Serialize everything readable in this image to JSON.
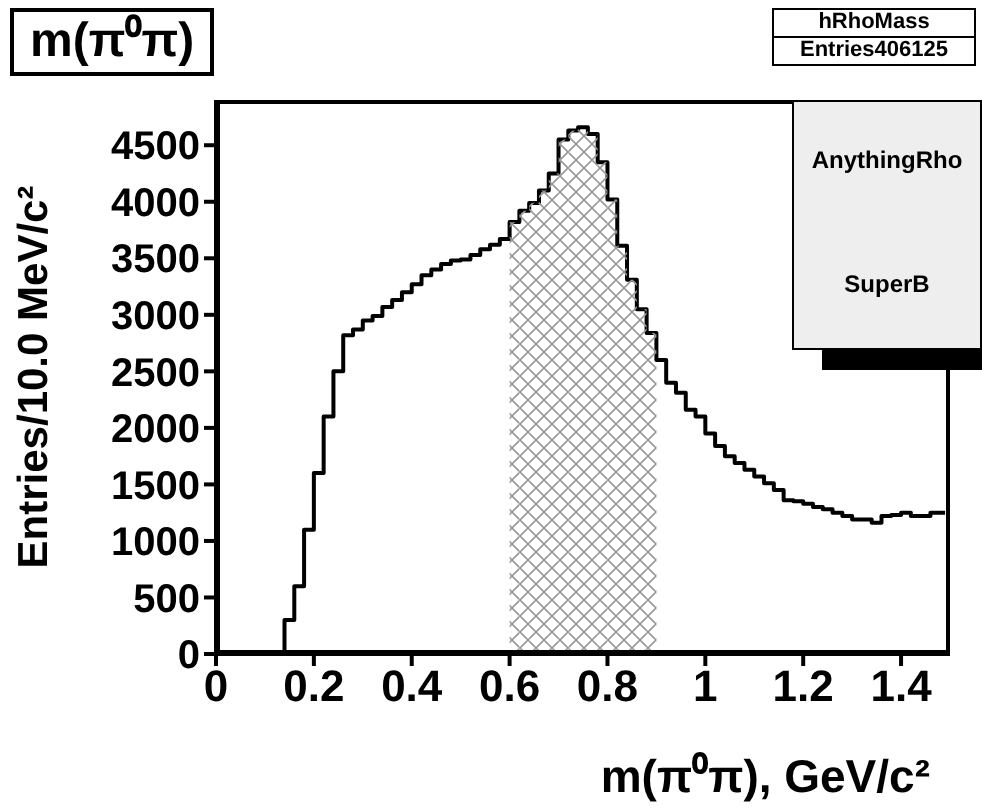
{
  "chart_data": {
    "type": "histogram",
    "title": "m(π⁰π)",
    "xlabel": "m(π⁰π), GeV/c²",
    "ylabel": "Entries/10.0 MeV/c²",
    "annotations": [
      "hRhoMass",
      "Entries406125",
      "AnythingRho",
      "SuperB"
    ],
    "xlim": [
      0,
      1.5
    ],
    "xticks": [
      0,
      0.2,
      0.4,
      0.6,
      0.8,
      1,
      1.2,
      1.4
    ],
    "ylim": [
      0,
      4900
    ],
    "yticks": [
      0,
      500,
      1000,
      1500,
      2000,
      2500,
      3000,
      3500,
      4000,
      4500
    ],
    "bins": [
      0.6,
      0.62,
      0.64,
      0.66,
      0.68,
      0.7,
      0.72,
      0.74,
      0.76,
      0.78,
      0.8,
      0.82,
      0.84,
      0.86,
      0.88,
      0.9
    ],
    "series": [
      {
        "type": "step",
        "color": "#000000",
        "x": [
          0.01,
          0.03,
          0.05,
          0.07,
          0.09,
          0.11,
          0.13,
          0.15,
          0.17,
          0.19,
          0.21,
          0.23,
          0.25,
          0.27,
          0.29,
          0.31,
          0.33,
          0.35,
          0.37,
          0.39,
          0.41,
          0.43,
          0.45,
          0.47,
          0.49,
          0.51,
          0.53,
          0.55,
          0.57,
          0.59,
          0.61,
          0.63,
          0.65,
          0.67,
          0.69,
          0.71,
          0.73,
          0.75,
          0.77,
          0.79,
          0.81,
          0.83,
          0.85,
          0.87,
          0.89,
          0.91,
          0.93,
          0.95,
          0.97,
          0.99,
          1.01,
          1.03,
          1.05,
          1.07,
          1.09,
          1.11,
          1.13,
          1.15,
          1.17,
          1.19,
          1.21,
          1.23,
          1.25,
          1.27,
          1.29,
          1.31,
          1.33,
          1.35,
          1.37,
          1.39,
          1.41,
          1.43,
          1.45,
          1.47,
          1.49
        ],
        "values": [
          0,
          0,
          0,
          0,
          0,
          0,
          0,
          300,
          600,
          1100,
          1600,
          2100,
          2500,
          2820,
          2870,
          2950,
          2990,
          3070,
          3130,
          3200,
          3270,
          3350,
          3400,
          3450,
          3480,
          3490,
          3530,
          3580,
          3620,
          3670,
          3820,
          3920,
          3990,
          4100,
          4250,
          4550,
          4630,
          4660,
          4600,
          4350,
          4020,
          3610,
          3310,
          3050,
          2840,
          2600,
          2400,
          2310,
          2160,
          2100,
          1950,
          1840,
          1750,
          1690,
          1630,
          1570,
          1510,
          1450,
          1360,
          1350,
          1330,
          1300,
          1280,
          1250,
          1220,
          1190,
          1190,
          1160,
          1220,
          1230,
          1250,
          1220,
          1220,
          1250,
          1250
        ]
      },
      {
        "color": "#999999",
        "values": [
          3820,
          3920,
          3990,
          4100,
          4250,
          4550,
          4630,
          4660,
          4600,
          4350,
          4020,
          3610,
          3310,
          3050,
          2840
        ]
      }
    ]
  }
}
